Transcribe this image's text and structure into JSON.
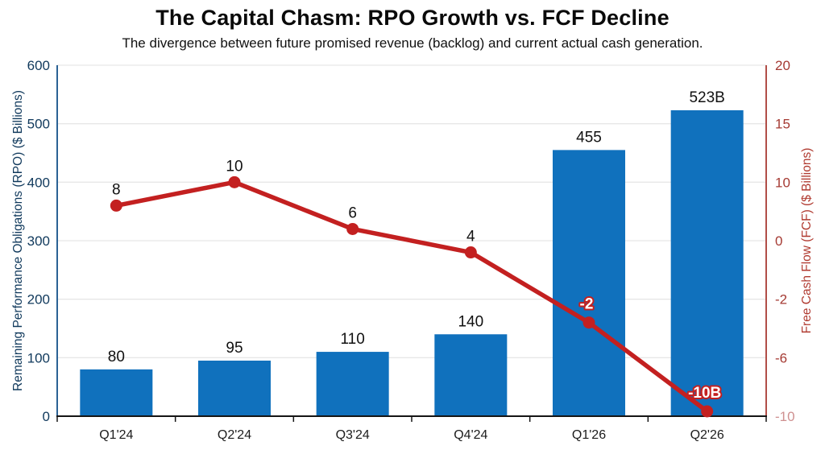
{
  "title": "The Capital Chasm: RPO Growth vs. FCF Decline",
  "subtitle": "The divergence between future promised revenue (backlog) and current actual cash generation.",
  "chart_data": {
    "type": "combo-bar-line",
    "categories": [
      "Q1'24",
      "Q2'24",
      "Q3'24",
      "Q4'24",
      "Q1'26",
      "Q2'26"
    ],
    "series": [
      {
        "name": "Remaining Performance Obligations (RPO)",
        "type": "bar",
        "axis": "left",
        "values": [
          80,
          95,
          110,
          140,
          455,
          523
        ],
        "point_labels": [
          "80",
          "95",
          "110",
          "140",
          "455",
          "523B"
        ],
        "color": "#1071bd"
      },
      {
        "name": "Free Cash Flow (FCF)",
        "type": "line",
        "axis": "right",
        "values": [
          8,
          10,
          6,
          4,
          -2,
          -10
        ],
        "point_labels": [
          "8",
          "10",
          "6",
          "4",
          "-2",
          "-10B"
        ],
        "color": "#c32020"
      }
    ],
    "left_axis": {
      "title": "Remaining Performance Obligations (RPO) ($ Billions)",
      "range": [
        0,
        600
      ],
      "tick_labels": [
        "0",
        "100",
        "200",
        "300",
        "400",
        "500",
        "600"
      ],
      "text_color": "#10395c",
      "spine_color": "#2b6295"
    },
    "right_axis": {
      "title": "Free Cash Flow (FCF) ($ Billions)",
      "range": [
        -10,
        20
      ],
      "tick_labels": [
        "20",
        "15",
        "10",
        "0",
        "-2",
        "-6",
        "-10"
      ],
      "text_color": "#a53a33",
      "muted_tick_color": "#cf9090",
      "spine_color": "#b14e48"
    },
    "x_axis": {
      "label_color": "#1c1c1c",
      "spine_color": "#151515"
    },
    "grid": {
      "show": true,
      "color": "#e7e7e7"
    },
    "label_colors": {
      "data_label": "#111111",
      "negative_label_fill": "#ffffff",
      "negative_label_stroke": "#c32020"
    },
    "legend": "none"
  }
}
